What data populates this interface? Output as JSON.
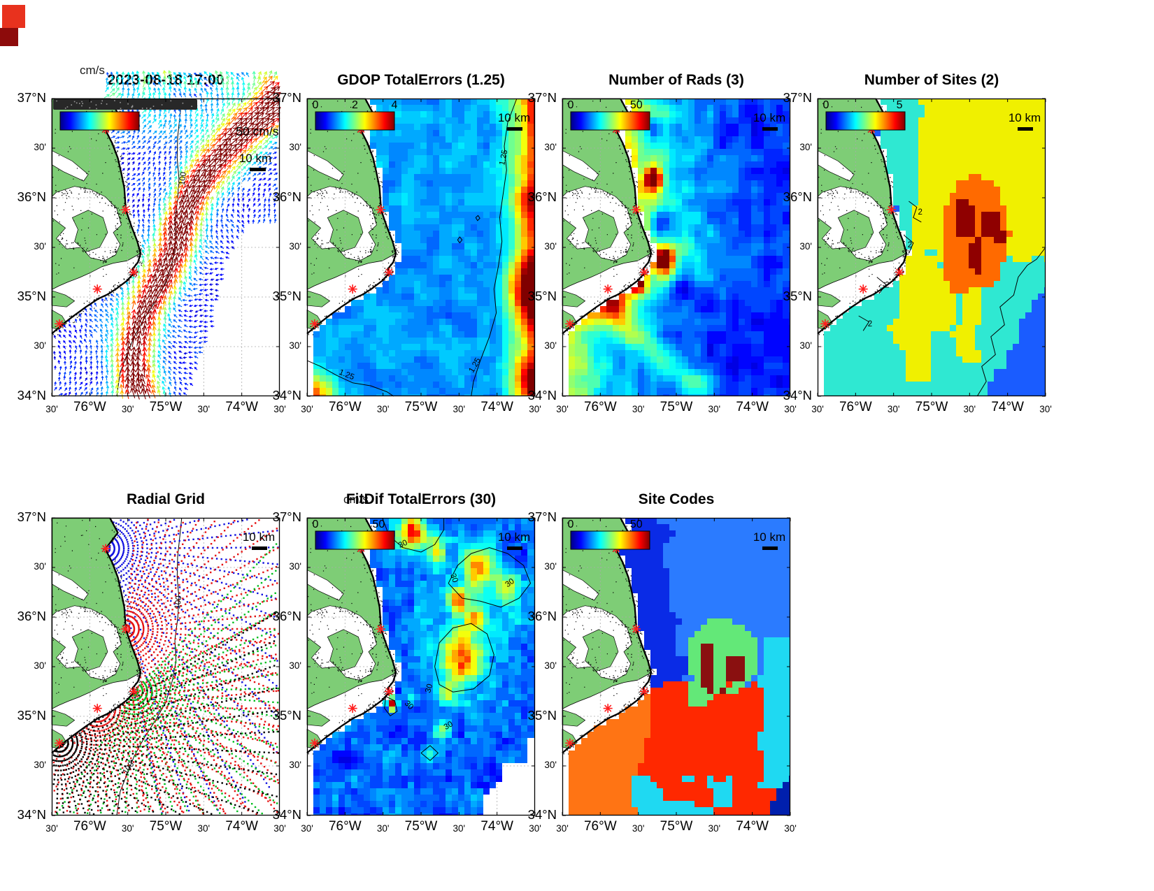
{
  "shared": {
    "y_tick_labels": [
      "37°N",
      "30'",
      "36°N",
      "30'",
      "35°N",
      "30'",
      "34°N"
    ],
    "x_tick_labels": [
      "30'",
      "76°W",
      "30'",
      "75°W",
      "30'",
      "74°W",
      "30'"
    ],
    "scale_bar_label": "10 km"
  },
  "panels": [
    {
      "id": "currents",
      "title": "2023-08-18 17:00",
      "units_label": "cm/s",
      "scale_bar_label": "10 km",
      "reference_vector_label": "50 cm/s",
      "colorbar": {
        "show": true,
        "smudged": true,
        "ticks": []
      },
      "contour_label": "100"
    },
    {
      "id": "gdop",
      "title": "GDOP TotalErrors (1.25)",
      "scale_bar_label": "10 km",
      "colorbar": {
        "show": true,
        "smudged": false,
        "ticks": [
          {
            "label": "0",
            "f": 0
          },
          {
            "label": "2",
            "f": 0.5
          },
          {
            "label": "4",
            "f": 1
          }
        ]
      },
      "contour_label": "1.25"
    },
    {
      "id": "numrads",
      "title": "Number of Rads (3)",
      "scale_bar_label": "10 km",
      "colorbar": {
        "show": true,
        "smudged": false,
        "ticks": [
          {
            "label": "0",
            "f": 0
          },
          {
            "label": "50",
            "f": 0.83
          }
        ]
      },
      "contour_label": ""
    },
    {
      "id": "numsites",
      "title": "Number of Sites (2)",
      "scale_bar_label": "10 km",
      "colorbar": {
        "show": true,
        "smudged": false,
        "ticks": [
          {
            "label": "0",
            "f": 0
          },
          {
            "label": "5",
            "f": 0.93
          }
        ]
      },
      "contour_label": "2"
    },
    {
      "id": "radialgrid",
      "title": "Radial Grid",
      "scale_bar_label": "10 km",
      "colorbar": {
        "show": false,
        "smudged": false,
        "ticks": []
      },
      "contour_label": "100"
    },
    {
      "id": "fitdif",
      "title": "FitDif TotalErrors (30)",
      "units_label": "cm/s",
      "scale_bar_label": "10 km",
      "colorbar": {
        "show": true,
        "smudged": false,
        "ticks": [
          {
            "label": "0",
            "f": 0
          },
          {
            "label": "50",
            "f": 0.8
          }
        ]
      },
      "contour_label": "30"
    },
    {
      "id": "sitecodes",
      "title": "Site Codes",
      "scale_bar_label": "10 km",
      "colorbar": {
        "show": true,
        "smudged": false,
        "ticks": [
          {
            "label": "0",
            "f": 0
          },
          {
            "label": "50",
            "f": 0.83
          }
        ]
      },
      "contour_label": ""
    }
  ],
  "chart_data": {
    "shared": {
      "lon_range": [
        -76.5,
        -73.5
      ],
      "lat_range": [
        34,
        37
      ],
      "x_tick_values": [
        -76.5,
        -76,
        -75.5,
        -75,
        -74.5,
        -74,
        -73.5
      ],
      "y_tick_values": [
        37,
        36.5,
        36,
        35.5,
        35,
        34.5,
        34
      ],
      "radar_sites_lonlat": [
        [
          -75.79,
          36.69
        ],
        [
          -75.53,
          35.88
        ],
        [
          -75.42,
          35.25
        ],
        [
          -75.9,
          35.08
        ],
        [
          -76.4,
          34.73
        ]
      ],
      "depth_contour_m": 100
    },
    "panels": [
      {
        "type": "quiver",
        "title": "2023-08-18 17:00",
        "units": "cm/s",
        "colorbar_range": [
          0,
          50
        ],
        "reference_vector_cm_s": 50,
        "jet_axis_path_frac": [
          [
            1.03,
            0.0
          ],
          [
            0.9,
            0.07
          ],
          [
            0.79,
            0.15
          ],
          [
            0.7,
            0.23
          ],
          [
            0.63,
            0.31
          ],
          [
            0.585,
            0.385
          ],
          [
            0.555,
            0.455
          ],
          [
            0.53,
            0.52
          ],
          [
            0.49,
            0.59
          ],
          [
            0.445,
            0.655
          ],
          [
            0.405,
            0.725
          ],
          [
            0.375,
            0.8
          ],
          [
            0.355,
            0.875
          ],
          [
            0.365,
            0.95
          ],
          [
            0.39,
            1.01
          ]
        ],
        "peak_speed_cm_s": 50,
        "background_speed_cm_s": 8,
        "summary": "Surface current vectors: weak (blue) flow nearshore, strong 40-50 cm/s (red) Gulf Stream jet sweeping from NE corner south along the shelf break"
      },
      {
        "type": "heatmap",
        "title": "GDOP TotalErrors (1.25)",
        "colorbar_range": [
          0,
          4
        ],
        "colorbar_ticks": [
          0,
          2,
          4
        ],
        "contour_level": 1.25,
        "summary": "GDOP about 1 (blue) over most of the domain, rising to 2-4 (yellow to red) along the eastern boundary and in the far SW corner"
      },
      {
        "type": "heatmap",
        "title": "Number of Rads (3)",
        "colorbar_range": [
          0,
          50
        ],
        "colorbar_ticks": [
          0,
          50
        ],
        "hotspots_frac": [
          [
            0.4,
            0.27,
            0.0012,
            38
          ],
          [
            0.45,
            0.54,
            0.0016,
            38
          ],
          [
            0.33,
            0.615,
            0.001,
            34
          ],
          [
            0.24,
            0.695,
            0.0015,
            16
          ]
        ],
        "summary": "5-10 radials offshore (blue), 20-35 near the coast (green-yellow), about 50 (red) just seaward of the radar sites"
      },
      {
        "type": "categorical",
        "title": "Number of Sites (2)",
        "colorbar_range": [
          0,
          5
        ],
        "colorbar_ticks": [
          0,
          5
        ],
        "values_shown": [
          2,
          3,
          4,
          5
        ],
        "contour_level": 2,
        "summary": "cyan (2 sites) nearshore and south, yellow (3) over the NE, orange (4) with dark-red (5) patches center-east, blue (2) in the SE corner"
      },
      {
        "type": "scatter",
        "title": "Radial Grid",
        "series": [
          {
            "site_index": 0,
            "color": "blue"
          },
          {
            "site_index": 1,
            "color": "red"
          },
          {
            "site_index": 2,
            "color": "green"
          },
          {
            "site_index": 3,
            "color": "red"
          },
          {
            "site_index": 4,
            "color": "black"
          }
        ],
        "summary": "Concentric range arcs and azimuth spokes of dots radiating seaward from each radar site"
      },
      {
        "type": "heatmap",
        "title": "FitDif TotalErrors (30)",
        "units": "cm/s",
        "colorbar_range": [
          0,
          50
        ],
        "colorbar_ticks": [
          0,
          50
        ],
        "contour_level": 30,
        "blobs_frac": [
          [
            0.46,
            0.045,
            0.0035,
            30
          ],
          [
            0.57,
            0.115,
            0.002,
            18
          ],
          [
            0.75,
            0.165,
            0.004,
            22
          ],
          [
            0.88,
            0.225,
            0.0025,
            18
          ],
          [
            0.66,
            0.28,
            0.002,
            24
          ],
          [
            0.74,
            0.335,
            0.0018,
            18
          ],
          [
            0.68,
            0.47,
            0.007,
            26
          ],
          [
            0.62,
            0.585,
            0.0015,
            16
          ],
          [
            0.375,
            0.625,
            0.0005,
            40
          ],
          [
            0.455,
            0.605,
            0.0008,
            12
          ],
          [
            0.54,
            0.795,
            0.001,
            12
          ],
          [
            0.6,
            0.715,
            0.0012,
            14
          ]
        ],
        "summary": "10-15 cm/s (blue) background with 30-45 cm/s (orange-red) patches along the shelf break; no data in SE corner"
      },
      {
        "type": "categorical",
        "title": "Site Codes",
        "colorbar_range": [
          0,
          50
        ],
        "colorbar_ticks": [
          0,
          50
        ],
        "summary": "Solid regions by contributing site combination: royal blue nearshore-north, bright blue NE, light green with dark-red patches center, red south-center, orange SW, cyan fringes, navy SE corner"
      }
    ]
  }
}
